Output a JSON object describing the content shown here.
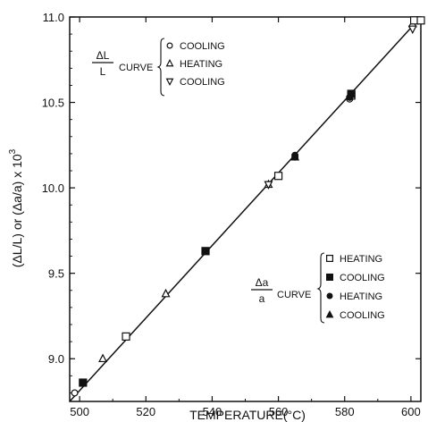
{
  "chart_data": {
    "type": "scatter",
    "xlabel": "TEMPERATURE(°C)",
    "ylabel": "(ΔL/L) or (Δa/a) x 10",
    "ylabel_exp": "3",
    "xlim": [
      497,
      603
    ],
    "ylim": [
      8.75,
      11.0
    ],
    "x_ticks": [
      "500",
      "520",
      "540",
      "560",
      "580",
      "600"
    ],
    "y_ticks": [
      "9.0",
      "9.5",
      "10.0",
      "10.5",
      "11.0"
    ],
    "fit_line": {
      "x": [
        497,
        603
      ],
      "y": [
        8.75,
        11.0
      ]
    },
    "legend_dl": {
      "num": "ΔL",
      "den": "L",
      "word": "CURVE",
      "entries": [
        "COOLING",
        "HEATING",
        "COOLING"
      ]
    },
    "legend_da": {
      "num": "Δa",
      "den": "a",
      "word": "CURVE",
      "entries": [
        "HEATING",
        "COOLING",
        "HEATING",
        "COOLING"
      ]
    },
    "series": [
      {
        "group": "dl",
        "marker": "circle-open",
        "points": [
          [
            498.5,
            8.8
          ],
          [
            581.5,
            10.52
          ],
          [
            560,
            10.07
          ],
          [
            565,
            10.18
          ]
        ]
      },
      {
        "group": "dl",
        "marker": "triangle-up-open",
        "points": [
          [
            507,
            9.0
          ],
          [
            526,
            9.38
          ],
          [
            557,
            10.02
          ],
          [
            600.5,
            10.96
          ]
        ]
      },
      {
        "group": "dl",
        "marker": "triangle-down-open",
        "points": [
          [
            557,
            10.02
          ],
          [
            600.5,
            10.93
          ]
        ]
      },
      {
        "group": "da",
        "marker": "square-open",
        "points": [
          [
            514,
            9.13
          ],
          [
            560,
            10.07
          ],
          [
            582,
            10.54
          ],
          [
            601,
            10.98
          ],
          [
            603,
            10.98
          ]
        ]
      },
      {
        "group": "da",
        "marker": "square-filled",
        "points": [
          [
            501,
            8.86
          ],
          [
            538,
            9.63
          ],
          [
            582,
            10.55
          ]
        ]
      },
      {
        "group": "da",
        "marker": "circle-filled",
        "points": [
          [
            565,
            10.19
          ],
          [
            581.5,
            10.53
          ]
        ]
      },
      {
        "group": "da",
        "marker": "triangle-up-filled",
        "points": [
          [
            565,
            10.18
          ]
        ]
      }
    ]
  }
}
